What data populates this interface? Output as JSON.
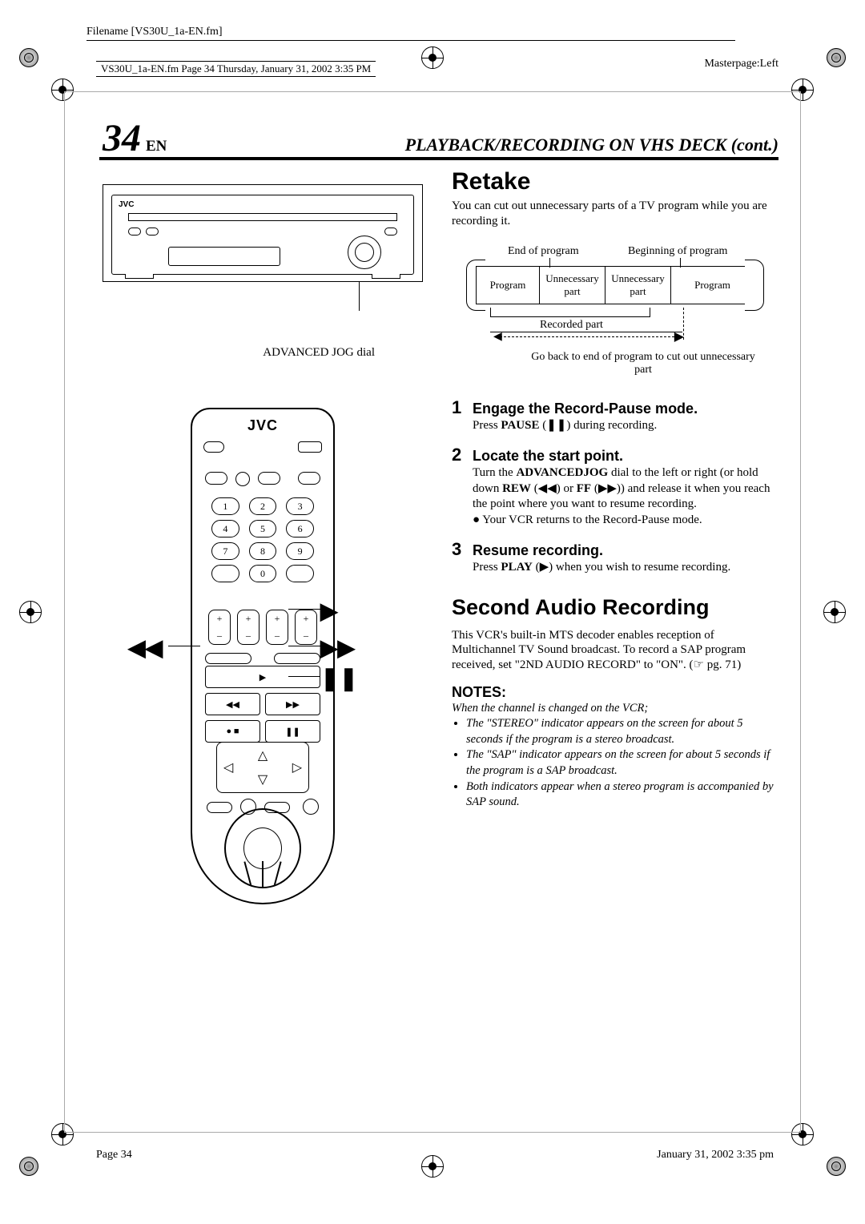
{
  "meta": {
    "filename_label": "Filename [VS30U_1a-EN.fm]",
    "page_header_info": "VS30U_1a-EN.fm  Page 34  Thursday, January 31, 2002  3:35 PM",
    "masterpage": "Masterpage:Left",
    "footer_left": "Page 34",
    "footer_right": "January 31, 2002 3:35 pm"
  },
  "page": {
    "number": "34",
    "lang": "EN",
    "section_title": "PLAYBACK/RECORDING ON VHS DECK (cont.)"
  },
  "left": {
    "vcr_brand": "JVC",
    "jog_label": "ADVANCED JOG dial",
    "remote_brand": "JVC",
    "keypad": [
      "1",
      "2",
      "3",
      "4",
      "5",
      "6",
      "7",
      "8",
      "9"
    ],
    "key_zero": "0",
    "plus": "+",
    "minus": "–",
    "symbols": {
      "play": "▶",
      "ff": "▶▶",
      "rew": "◀◀",
      "pause": "❚❚"
    }
  },
  "retake": {
    "title": "Retake",
    "intro": "You can cut out unnecessary parts of a TV program while you are recording it.",
    "diagram": {
      "end_label": "End of program",
      "begin_label": "Beginning of program",
      "seg_program": "Program",
      "seg_unnecessary": "Unnecessary part",
      "recorded_label": "Recorded part",
      "goback_label": "Go back to end of program to cut out unnecessary part",
      "widths": [
        80,
        80,
        80,
        74
      ],
      "border_color": "#000000",
      "fontsize_label": 14
    }
  },
  "steps": [
    {
      "n": "1",
      "head": "Engage the Record-Pause mode.",
      "body": "Press <b>PAUSE</b> (❚❚) during recording."
    },
    {
      "n": "2",
      "head": "Locate the start point.",
      "body": "Turn the <b>ADVANCEDJOG</b> dial to the left or right (or hold down <b>REW</b> (◀◀) or <b>FF</b> (▶▶)) and release it when you reach the point where you want to resume recording.",
      "bullet": "● Your VCR returns to the Record-Pause mode."
    },
    {
      "n": "3",
      "head": "Resume recording.",
      "body": "Press <b>PLAY</b> (▶) when you wish to resume recording."
    }
  ],
  "second_audio": {
    "title": "Second Audio Recording",
    "body": "This VCR's built-in MTS decoder enables reception of Multichannel TV Sound broadcast. To record a SAP program received, set \"2ND AUDIO RECORD\" to \"ON\". (☞ pg. 71)"
  },
  "notes": {
    "title": "NOTES:",
    "lead": "When the channel is changed on the VCR;",
    "items": [
      "The \"STEREO\" indicator appears on the screen for about 5 seconds if the program is a stereo broadcast.",
      "The \"SAP\" indicator appears on the screen for about 5 seconds if the program is a SAP broadcast.",
      "Both indicators appear when a stereo program is accompanied by SAP sound."
    ]
  },
  "colors": {
    "text": "#000000",
    "bg": "#ffffff",
    "rule": "#000000"
  }
}
